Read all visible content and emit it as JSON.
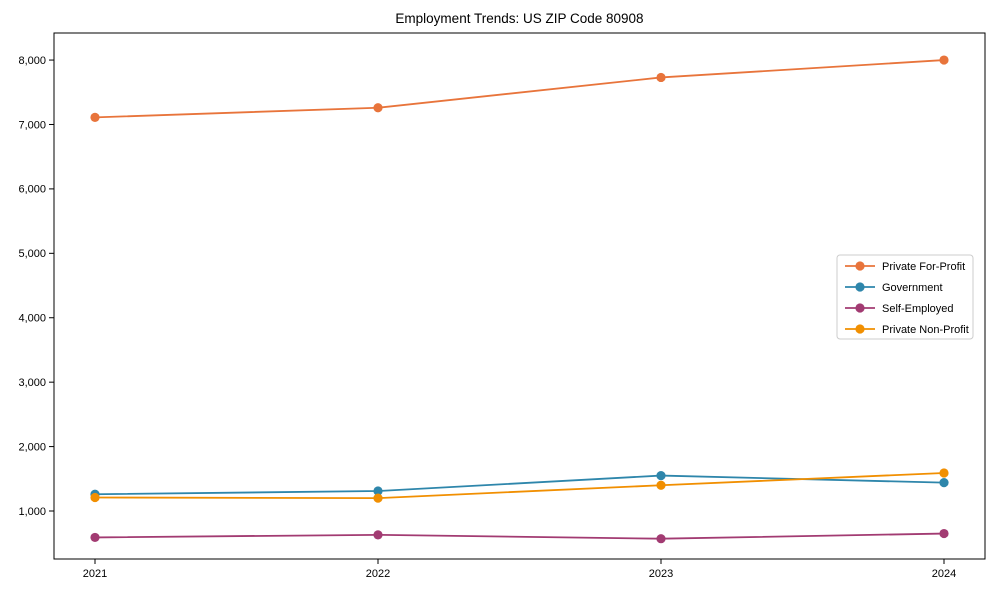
{
  "chart_data": {
    "type": "line",
    "title": "Employment Trends: US ZIP Code 80908",
    "x_categories": [
      "2021",
      "2022",
      "2023",
      "2024"
    ],
    "series": [
      {
        "name": "Private For-Profit",
        "color": "#E8743B",
        "values": [
          7110,
          7260,
          7730,
          8000
        ]
      },
      {
        "name": "Government",
        "color": "#2E86AB",
        "values": [
          1260,
          1310,
          1550,
          1440
        ]
      },
      {
        "name": "Self-Employed",
        "color": "#A23B72",
        "values": [
          590,
          630,
          570,
          650
        ]
      },
      {
        "name": "Private Non-Profit",
        "color": "#F18F01",
        "values": [
          1210,
          1200,
          1400,
          1590
        ]
      }
    ],
    "xlabel": "",
    "ylabel": "",
    "ylim": [
      255,
      8420
    ],
    "yticks": [
      1000,
      2000,
      3000,
      4000,
      5000,
      6000,
      7000,
      8000
    ],
    "ytick_labels": [
      "1,000",
      "2,000",
      "3,000",
      "4,000",
      "5,000",
      "6,000",
      "7,000",
      "8,000"
    ],
    "grid": false,
    "legend_position": "center-right",
    "legend_border_color": "#cccccc",
    "legend_background": "#ffffff",
    "axis_color": "#000000",
    "text_color": "#000000",
    "background": "#ffffff"
  }
}
